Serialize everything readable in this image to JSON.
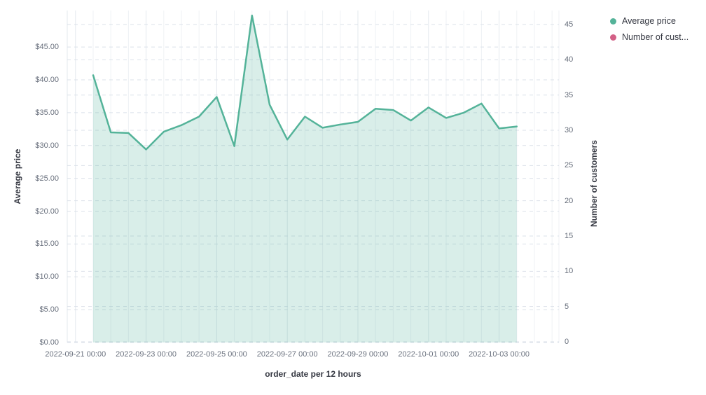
{
  "chart": {
    "legend": {
      "items": [
        {
          "label": "Average price",
          "color": "#54B399"
        },
        {
          "label": "Number of cust...",
          "color": "#D36086"
        }
      ]
    },
    "left_axis": {
      "title": "Average price",
      "tick_labels": [
        "$0.00",
        "$5.00",
        "$10.00",
        "$15.00",
        "$20.00",
        "$25.00",
        "$30.00",
        "$35.00",
        "$40.00",
        "$45.00"
      ]
    },
    "right_axis": {
      "title": "Number of customers",
      "tick_labels": [
        "0",
        "5",
        "10",
        "15",
        "20",
        "25",
        "30",
        "35",
        "40",
        "45"
      ]
    },
    "x_axis": {
      "title": "order_date per 12 hours",
      "tick_labels": [
        "2022-09-21 00:00",
        "2022-09-23 00:00",
        "2022-09-25 00:00",
        "2022-09-27 00:00",
        "2022-09-29 00:00",
        "2022-10-01 00:00",
        "2022-10-03 00:00"
      ]
    }
  },
  "chart_data": {
    "type": "area",
    "title": "",
    "xlabel": "order_date per 12 hours",
    "x_interval": "12 hours",
    "x": [
      "2022-09-21 12:00",
      "2022-09-22 00:00",
      "2022-09-22 12:00",
      "2022-09-23 00:00",
      "2022-09-23 12:00",
      "2022-09-24 00:00",
      "2022-09-24 12:00",
      "2022-09-25 00:00",
      "2022-09-25 12:00",
      "2022-09-26 00:00",
      "2022-09-26 12:00",
      "2022-09-27 00:00",
      "2022-09-27 12:00",
      "2022-09-28 00:00",
      "2022-09-28 12:00",
      "2022-09-29 00:00",
      "2022-09-29 12:00",
      "2022-09-30 00:00",
      "2022-09-30 12:00",
      "2022-10-01 00:00",
      "2022-10-01 12:00",
      "2022-10-02 00:00",
      "2022-10-02 12:00",
      "2022-10-03 00:00",
      "2022-10-03 12:00"
    ],
    "series": [
      {
        "name": "Average price",
        "axis": "left",
        "color": "#54B399",
        "fill_opacity": 0.22,
        "values": [
          40.7,
          32.0,
          31.9,
          29.4,
          32.1,
          33.1,
          34.4,
          37.4,
          29.9,
          49.8,
          36.2,
          30.9,
          34.4,
          32.7,
          33.2,
          33.6,
          35.6,
          35.4,
          33.8,
          35.8,
          34.2,
          35.0,
          36.4,
          32.6,
          32.9
        ]
      },
      {
        "name": "Number of customers",
        "axis": "right",
        "color": "#D36086",
        "values": []
      }
    ],
    "ylabel_left": "Average price",
    "ylabel_right": "Number of customers",
    "left_axis_ticks": [
      0,
      5,
      10,
      15,
      20,
      25,
      30,
      35,
      40,
      45
    ],
    "right_axis_ticks": [
      0,
      5,
      10,
      15,
      20,
      25,
      30,
      35,
      40,
      45
    ],
    "left_ylim": [
      0,
      45
    ],
    "right_ylim": [
      0,
      45
    ],
    "grid": true,
    "legend_position": "top-right"
  }
}
